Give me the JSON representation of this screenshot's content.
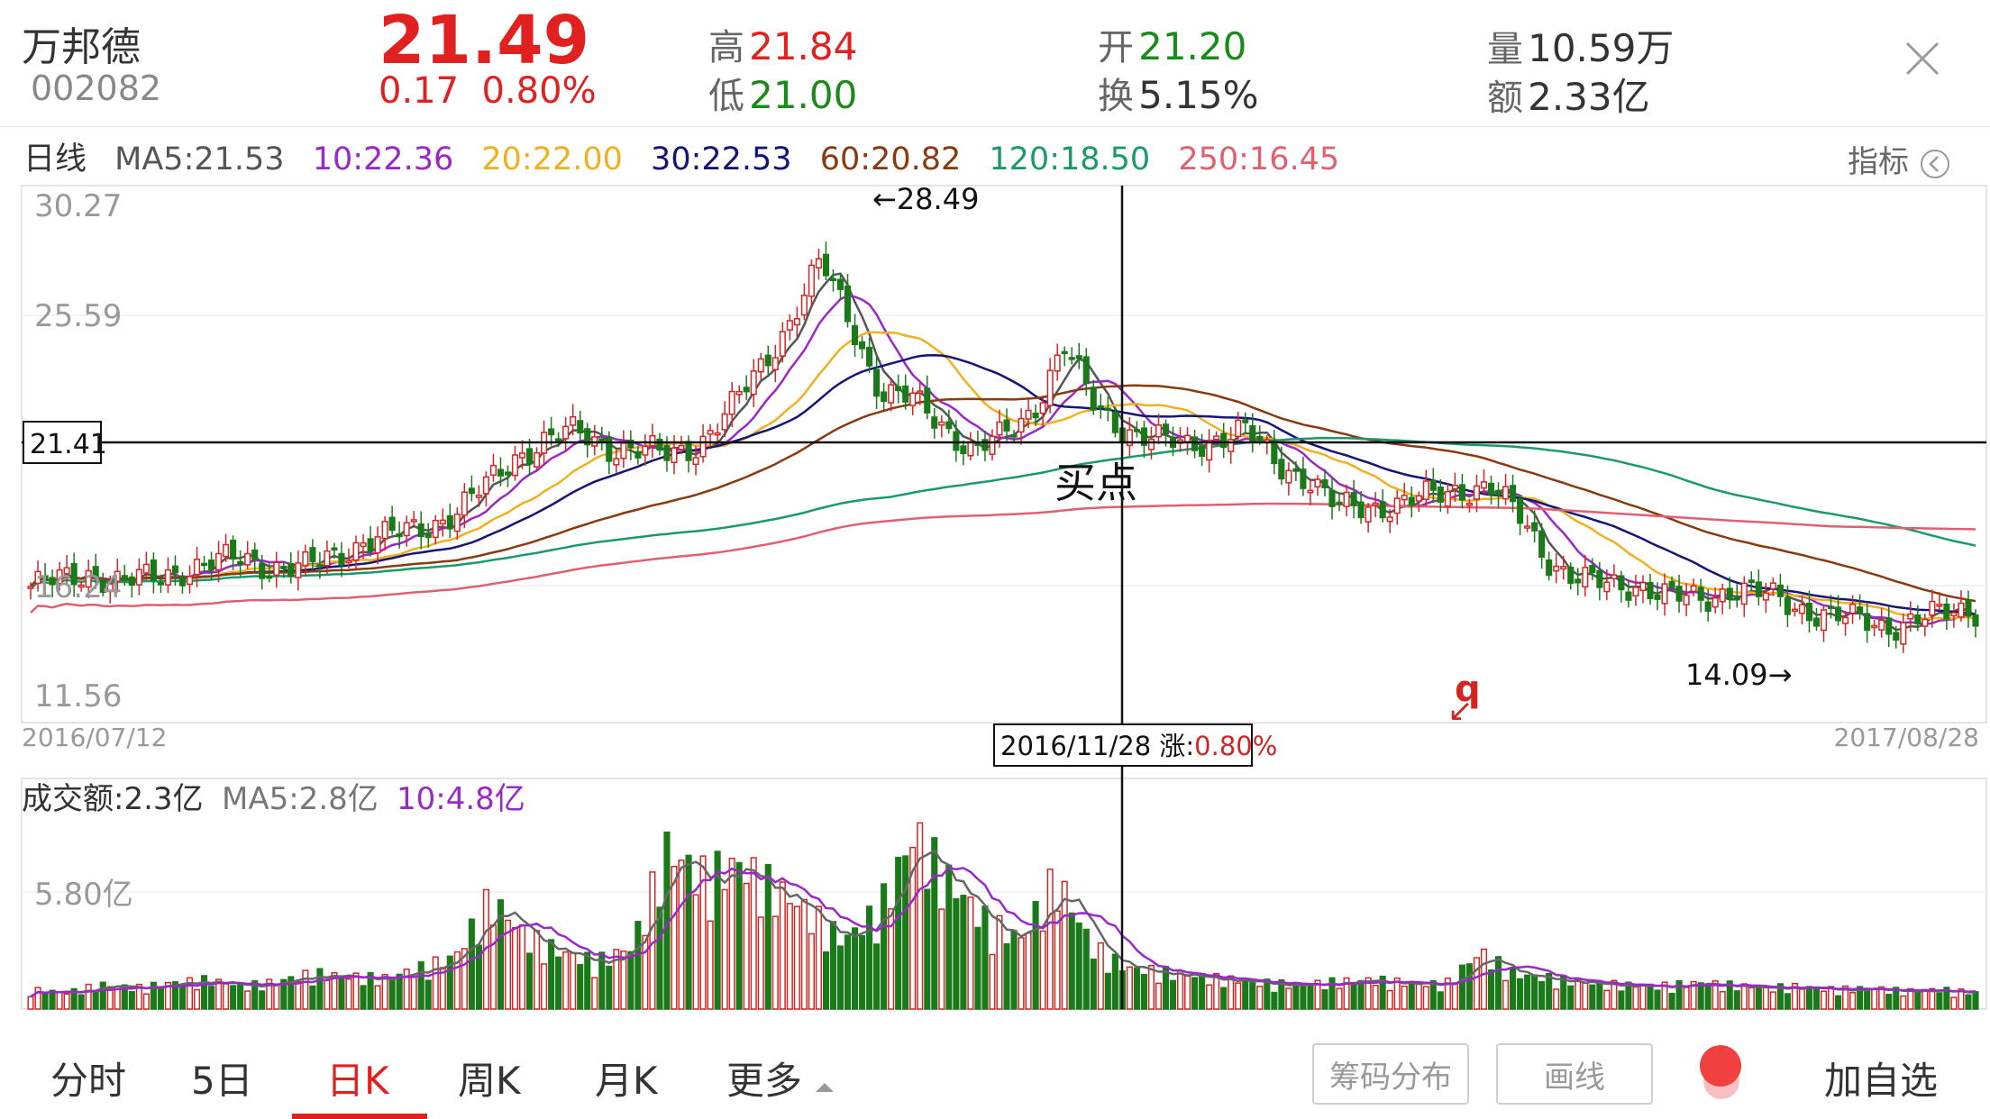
{
  "header": {
    "name": "万邦德",
    "code": "002082",
    "price": "21.49",
    "change_abs": "0.17",
    "change_pct": "0.80%",
    "high_label": "高",
    "high": "21.84",
    "low_label": "低",
    "low": "21.00",
    "open_label": "开",
    "open": "21.20",
    "turnover_label": "换",
    "turnover": "5.15%",
    "volume_label": "量",
    "volume": "10.59万",
    "amount_label": "额",
    "amount": "2.33亿"
  },
  "ma_bar": {
    "period": "日线",
    "ma5": "MA5:21.53",
    "ma10": "10:22.36",
    "ma20": "20:22.00",
    "ma30": "30:22.53",
    "ma60": "60:20.82",
    "ma120": "120:18.50",
    "ma250": "250:16.45",
    "indicator_button": "指标"
  },
  "colors": {
    "up": "#d42424",
    "down": "#1a7a1a",
    "ma5": "#555555",
    "ma10": "#9a28c8",
    "ma20": "#f0b020",
    "ma30": "#141478",
    "ma60": "#8a3a10",
    "ma120": "#1a9a6a",
    "ma250": "#e06070"
  },
  "price_chart": {
    "y_ticks": [
      "30.27",
      "25.59",
      "16.24",
      "11.56"
    ],
    "crosshair_price": "21.41",
    "start_date": "2016/07/12",
    "end_date": "2017/08/28",
    "crosshair_date": "2016/11/28",
    "crosshair_change_label": "涨:",
    "crosshair_change": "0.80%",
    "max_label": "←28.49",
    "min_label": "14.09→",
    "annotation": "买点",
    "mark_q": "q",
    "mark_arrow": "↙"
  },
  "volume_chart": {
    "label": "成交额:2.3亿",
    "ma5": "MA5:2.8亿",
    "ma10": "10:4.8亿",
    "y_tick": "5.80亿"
  },
  "tabs": [
    "分时",
    "5日",
    "日K",
    "周K",
    "月K",
    "更多"
  ],
  "active_tab": "日K",
  "buttons": {
    "chip": "筹码分布",
    "draw": "画线",
    "add_watch": "加自选"
  },
  "chart_data": {
    "type": "candlestick",
    "price_range": [
      11.56,
      30.27
    ],
    "start_date": "2016/07/12",
    "end_date": "2017/08/28",
    "max_price": 28.49,
    "min_price": 14.09,
    "close_path": [
      16.3,
      16.5,
      16.8,
      16.4,
      16.6,
      16.9,
      17.1,
      17.3,
      17.0,
      16.9,
      17.4,
      17.9,
      18.1,
      18.4,
      18.9,
      19.8,
      20.9,
      21.4,
      21.7,
      21.2,
      21.0,
      20.9,
      21.3,
      22.4,
      23.9,
      25.6,
      27.6,
      25.5,
      23.0,
      22.8,
      22.0,
      21.0,
      21.5,
      22.5,
      24.7,
      22.6,
      21.8,
      21.4,
      21.2,
      21.5,
      21.7,
      20.6,
      20.1,
      19.0,
      19.1,
      19.2,
      19.4,
      19.7,
      19.8,
      18.7,
      17.2,
      16.5,
      16.3,
      16.4,
      15.9,
      15.8,
      16.3,
      16.0,
      15.6,
      15.4,
      15.1,
      14.9,
      15.2,
      15.3,
      15.5
    ],
    "amount_series_yi": [
      1.2,
      1.0,
      1.5,
      1.3,
      1.6,
      1.8,
      1.4,
      1.7,
      2.2,
      2.0,
      1.9,
      2.5,
      3.2,
      6.8,
      4.5,
      3.5,
      2.9,
      3.8,
      9.8,
      8.2,
      8.9,
      7.5,
      6.0,
      4.2,
      6.1,
      10.8,
      7.8,
      5.5,
      4.3,
      8.1,
      3.9,
      2.5,
      2.3,
      2.0,
      1.8,
      1.6,
      1.5,
      1.7,
      1.8,
      1.6,
      1.5,
      3.5,
      2.1,
      1.9,
      1.6,
      1.5,
      1.4,
      1.6,
      1.5,
      1.3,
      1.4,
      1.2,
      1.3,
      1.1,
      1.2,
      1.0
    ],
    "amount_max_yi": 12.0,
    "vol_ma_series_yi": [
      1.9,
      1.5,
      1.4,
      1.5,
      1.6,
      1.7,
      1.8,
      2.0,
      2.3,
      3.0,
      3.9,
      4.8,
      6.0,
      7.6,
      8.4,
      8.0,
      6.5,
      6.3,
      7.2,
      6.3,
      5.1,
      4.1,
      3.3,
      2.6,
      2.2,
      2.0,
      1.8,
      1.7,
      1.7,
      1.8,
      1.9,
      2.0,
      1.8,
      1.7,
      1.6,
      1.5,
      1.5,
      1.4,
      1.4,
      1.3,
      1.3
    ]
  }
}
